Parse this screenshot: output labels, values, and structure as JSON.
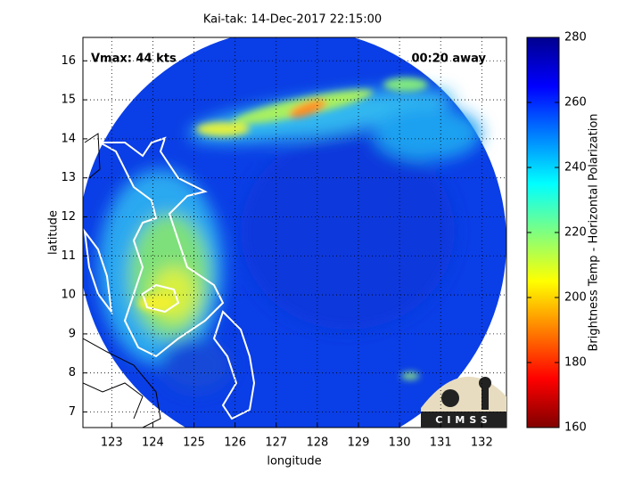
{
  "chart_data": {
    "type": "image",
    "title": "Kai-tak: 14-Dec-2017 22:15:00",
    "xlabel": "longitude",
    "ylabel": "latitude",
    "xlim": [
      122.3,
      132.6
    ],
    "xticks": [
      123,
      124,
      125,
      126,
      127,
      128,
      129,
      130,
      131,
      132
    ],
    "ylim": [
      6.6,
      16.6
    ],
    "yticks": [
      7,
      8,
      9,
      10,
      11,
      12,
      13,
      14,
      15,
      16
    ],
    "annotations": [
      "Vmax: 44 kts",
      "00:20 away"
    ],
    "logo": "CIMSS",
    "colorbar": {
      "label": "Brightness Temp - Horizontal Polarization",
      "lim": [
        160,
        280
      ],
      "ticks": [
        160,
        180,
        200,
        220,
        240,
        260,
        280
      ]
    }
  }
}
